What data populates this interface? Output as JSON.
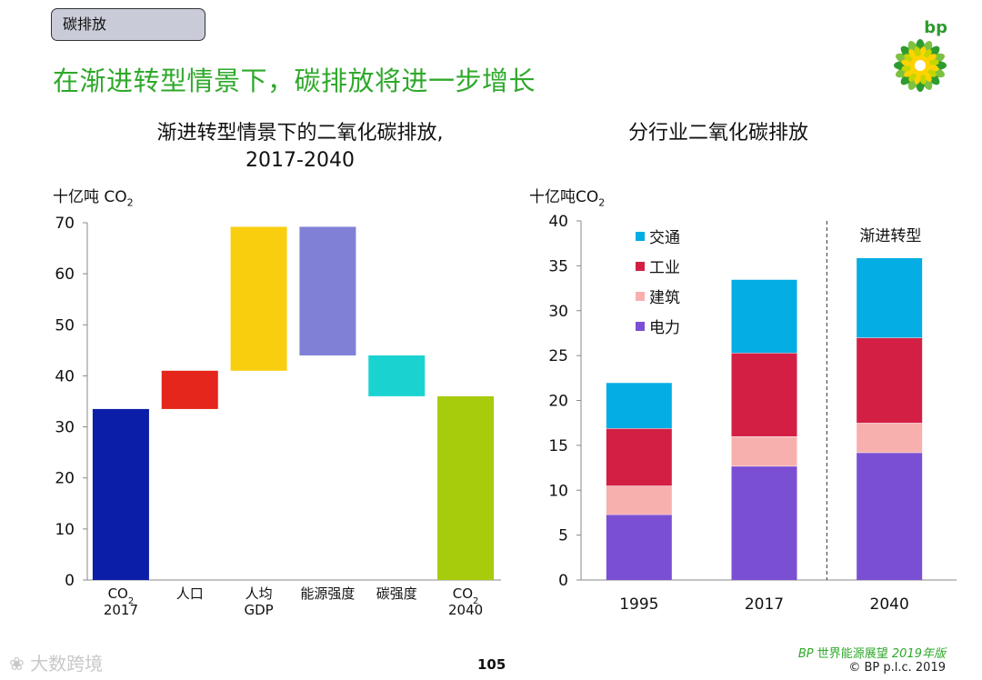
{
  "tag": "碳排放",
  "headline": "在渐进转型情景下，碳排放将进一步增长",
  "logo_text": "bp",
  "left_title_line1": "渐进转型情景下的二氧化碳排放,",
  "left_title_line2": "2017-2040",
  "left_unit": "十亿吨 CO",
  "left_unit_sub": "2",
  "right_title": "分行业二氧化碳排放",
  "right_unit": "十亿吨CO",
  "right_unit_sub": "2",
  "colors": {
    "co2_2017": "#0a1ea8",
    "population": "#e4261c",
    "gdp": "#f9ce0f",
    "energy_intensity": "#7f80d6",
    "carbon_intensity": "#1ad3d1",
    "co2_2040": "#a6cc0c",
    "transport": "#04ade3",
    "industry": "#d41f45",
    "buildings": "#f7b0ae",
    "power": "#7b4fd3"
  },
  "chart_data": [
    {
      "type": "bar",
      "subtype": "waterfall",
      "title": "渐进转型情景下的二氧化碳排放, 2017-2040",
      "ylabel": "十亿吨 CO2",
      "ylim": [
        0,
        70
      ],
      "yticks": [
        0,
        10,
        20,
        30,
        40,
        50,
        60,
        70
      ],
      "categories": [
        {
          "l1": "CO",
          "sub": "2",
          "l2": "2017"
        },
        {
          "l1": "人口",
          "sub": "",
          "l2": ""
        },
        {
          "l1": "人均",
          "sub": "",
          "l2": "GDP"
        },
        {
          "l1": "能源强度",
          "sub": "",
          "l2": ""
        },
        {
          "l1": "碳强度",
          "sub": "",
          "l2": ""
        },
        {
          "l1": "CO",
          "sub": "2",
          "l2": "2040"
        }
      ],
      "bars": [
        {
          "bottom": 0,
          "top": 33.5,
          "color_key": "co2_2017"
        },
        {
          "bottom": 33.5,
          "top": 41,
          "color_key": "population"
        },
        {
          "bottom": 41,
          "top": 69.2,
          "color_key": "gdp"
        },
        {
          "bottom": 44,
          "top": 69.2,
          "color_key": "energy_intensity"
        },
        {
          "bottom": 36,
          "top": 44,
          "color_key": "carbon_intensity"
        },
        {
          "bottom": 0,
          "top": 36,
          "color_key": "co2_2040"
        }
      ]
    },
    {
      "type": "bar",
      "subtype": "stacked",
      "title": "分行业二氧化碳排放",
      "ylabel": "十亿吨CO2",
      "ylim": [
        0,
        40
      ],
      "yticks": [
        0,
        5,
        10,
        15,
        20,
        25,
        30,
        35,
        40
      ],
      "categories": [
        "1995",
        "2017",
        "2040"
      ],
      "series": [
        {
          "name": "电力",
          "color_key": "power",
          "values": [
            7.3,
            12.7,
            14.2
          ]
        },
        {
          "name": "建筑",
          "color_key": "buildings",
          "values": [
            3.2,
            3.3,
            3.3
          ]
        },
        {
          "name": "工业",
          "color_key": "industry",
          "values": [
            6.4,
            9.3,
            9.5
          ]
        },
        {
          "name": "交通",
          "color_key": "transport",
          "values": [
            5.1,
            8.2,
            8.9
          ]
        }
      ],
      "legend_order": [
        "交通",
        "工业",
        "建筑",
        "电力"
      ],
      "annotation": "渐进转型"
    }
  ],
  "page_number": "105",
  "footer_brand_bp": "BP",
  "footer_brand_text": "世界能源展望",
  "footer_brand_year": "2019年版",
  "footer_copy": "© BP p.l.c. 2019",
  "watermark": "大数跨境"
}
